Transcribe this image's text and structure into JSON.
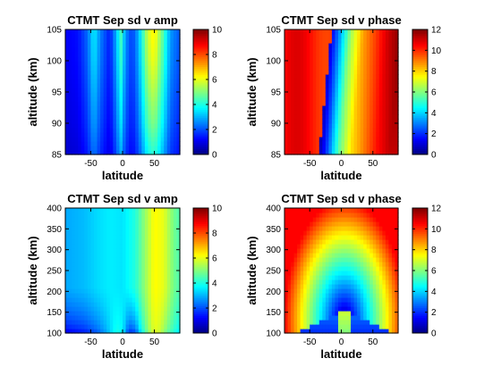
{
  "chart_data": [
    {
      "type": "heatmap",
      "title": "CTMT Sep sd v amp",
      "xlabel": "latitude",
      "ylabel": "altitude (km)",
      "xlim": [
        -90,
        90
      ],
      "ylim": [
        85,
        105
      ],
      "xticks": [
        "-50",
        "0",
        "50"
      ],
      "yticks": [
        "85",
        "90",
        "95",
        "100",
        "105"
      ],
      "colorbar": {
        "range": [
          0,
          10
        ],
        "ticks": [
          "0",
          "2",
          "4",
          "6",
          "8",
          "10"
        ]
      },
      "lat_profile": [
        [
          -90,
          1.0
        ],
        [
          -70,
          1.2
        ],
        [
          -55,
          2.0
        ],
        [
          -45,
          3.2
        ],
        [
          -35,
          2.2
        ],
        [
          -20,
          1.3
        ],
        [
          -10,
          2.6
        ],
        [
          -3,
          3.9
        ],
        [
          5,
          2.3
        ],
        [
          15,
          1.6
        ],
        [
          25,
          2.6
        ],
        [
          40,
          5.1
        ],
        [
          50,
          5.6
        ],
        [
          62,
          4.2
        ],
        [
          75,
          2.4
        ],
        [
          90,
          1.8
        ]
      ],
      "alt_factor": [
        [
          85,
          0.75
        ],
        [
          90,
          0.9
        ],
        [
          95,
          1.0
        ],
        [
          100,
          1.1
        ],
        [
          105,
          1.15
        ]
      ]
    },
    {
      "type": "heatmap",
      "title": "CTMT Sep sd v phase",
      "xlabel": "latitude",
      "ylabel": "altitude (km)",
      "xlim": [
        -90,
        90
      ],
      "ylim": [
        85,
        105
      ],
      "xticks": [
        "-50",
        "0",
        "50"
      ],
      "yticks": [
        "85",
        "90",
        "95",
        "100",
        "105"
      ],
      "colorbar": {
        "range": [
          0,
          12
        ],
        "ticks": [
          "0",
          "2",
          "4",
          "6",
          "8",
          "10",
          "12"
        ]
      },
      "left_phase": 10.3,
      "phase_jump_lat": [
        [
          85,
          -35
        ],
        [
          105,
          -15
        ]
      ],
      "right_gradient": [
        [
          -20,
          0.5
        ],
        [
          -8,
          2.3
        ],
        [
          10,
          5.5
        ],
        [
          30,
          7.8
        ],
        [
          50,
          9.0
        ],
        [
          70,
          10.3
        ],
        [
          90,
          11.2
        ]
      ]
    },
    {
      "type": "heatmap",
      "title": "CTMT Sep sd v amp",
      "xlabel": "latitude",
      "ylabel": "altitude (km)",
      "xlim": [
        -90,
        90
      ],
      "ylim": [
        100,
        400
      ],
      "xticks": [
        "-50",
        "0",
        "50"
      ],
      "yticks": [
        "100",
        "150",
        "200",
        "250",
        "300",
        "350",
        "400"
      ],
      "colorbar": {
        "range": [
          0,
          10
        ],
        "ticks": [
          "0",
          "2",
          "4",
          "6",
          "8",
          "10"
        ]
      },
      "upper_profile": [
        [
          -90,
          2.9
        ],
        [
          -60,
          3.1
        ],
        [
          -40,
          3.4
        ],
        [
          -20,
          3.6
        ],
        [
          0,
          3.5
        ],
        [
          20,
          4.1
        ],
        [
          35,
          5.2
        ],
        [
          50,
          6.3
        ],
        [
          65,
          6.0
        ],
        [
          80,
          4.9
        ],
        [
          90,
          4.5
        ]
      ],
      "lower_profile": [
        [
          -90,
          0.8
        ],
        [
          -60,
          1.2
        ],
        [
          -40,
          1.9
        ],
        [
          -25,
          2.8
        ],
        [
          -10,
          4.1
        ],
        [
          0,
          3.8
        ],
        [
          10,
          1.3
        ],
        [
          20,
          1.6
        ],
        [
          30,
          3.6
        ],
        [
          45,
          5.6
        ],
        [
          55,
          5.9
        ],
        [
          70,
          4.6
        ],
        [
          90,
          3.4
        ]
      ]
    },
    {
      "type": "heatmap",
      "title": "CTMT Sep sd v phase",
      "xlabel": "latitude",
      "ylabel": "altitude (km)",
      "xlim": [
        -90,
        90
      ],
      "ylim": [
        100,
        400
      ],
      "xticks": [
        "-50",
        "0",
        "50"
      ],
      "yticks": [
        "100",
        "150",
        "200",
        "250",
        "300",
        "350",
        "400"
      ],
      "colorbar": {
        "range": [
          0,
          12
        ],
        "ticks": [
          "0",
          "2",
          "4",
          "6",
          "8",
          "10",
          "12"
        ]
      },
      "upper_phase": 10.5,
      "center_lat": 5,
      "ring_base_alt": 130
    }
  ]
}
